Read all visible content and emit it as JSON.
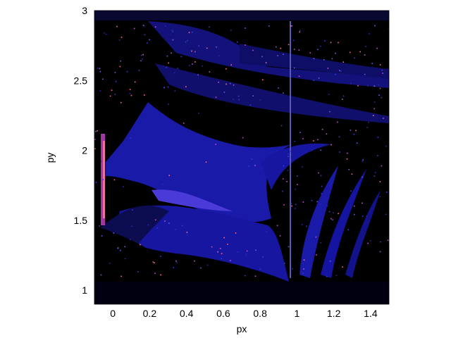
{
  "chart_data": {
    "type": "heatmap",
    "xlabel": "px",
    "ylabel": "py",
    "xlim": [
      -0.1,
      1.5
    ],
    "ylim": [
      0.9,
      3.0
    ],
    "x_ticks": [
      0,
      0.2,
      0.4,
      0.6,
      0.8,
      1,
      1.2,
      1.4
    ],
    "x_tick_labels": [
      "0",
      "0.2",
      "0.4",
      "0.6",
      "0.8",
      "1",
      "1.2",
      "1.4"
    ],
    "y_ticks": [
      1,
      1.5,
      2,
      2.5,
      3
    ],
    "y_tick_labels": [
      "1",
      "1.5",
      "2",
      "2.5",
      "3"
    ],
    "grid": false,
    "colormap": [
      "#000000",
      "#0a0a3a",
      "#1a1ab8",
      "#3a3ae0",
      "#8a3ab0",
      "#ff6a8a",
      "#ffd0a0"
    ],
    "background_color": "#000000",
    "features": {
      "vertical_line_x": 0.96,
      "lower_left_dark_region": "px < 0.05, py < 1.45",
      "main_blue_region": "px 0.05 to 0.9, py 1.5 to 2.3"
    }
  }
}
